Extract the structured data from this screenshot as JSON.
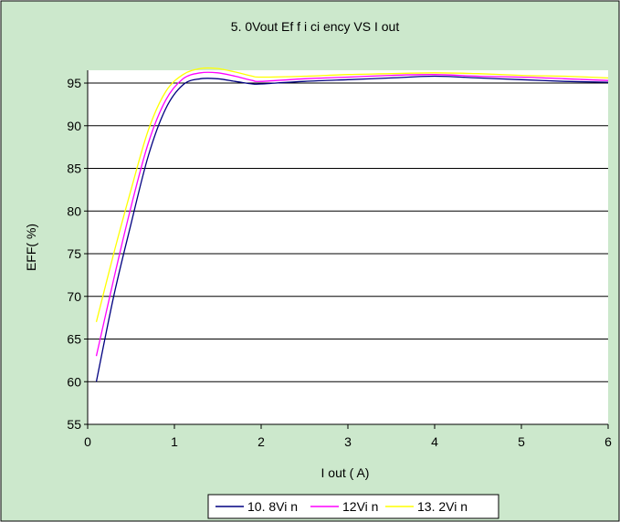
{
  "chart_data": {
    "type": "line",
    "title": "5. 0Vout  Ef f i ci ency VS I out",
    "xlabel": "I out ( A)",
    "ylabel": "EFF( %)",
    "xlim": [
      0,
      6
    ],
    "ylim": [
      55,
      96.5
    ],
    "x_ticks": [
      0,
      1,
      2,
      3,
      4,
      5,
      6
    ],
    "y_ticks": [
      55,
      60,
      65,
      70,
      75,
      80,
      85,
      90,
      95
    ],
    "grid": "horizontal",
    "legend_position": "bottom",
    "background": "#cce8cc",
    "plot_background": "#ffffff",
    "series": [
      {
        "name": "10. 8Vi n",
        "color": "#000080",
        "points": [
          [
            0.1,
            60.0
          ],
          [
            0.3,
            70.0
          ],
          [
            0.5,
            78.5
          ],
          [
            0.7,
            86.5
          ],
          [
            0.9,
            92.0
          ],
          [
            1.1,
            94.8
          ],
          [
            1.3,
            95.5
          ],
          [
            1.5,
            95.5
          ],
          [
            1.7,
            95.2
          ],
          [
            1.9,
            94.9
          ],
          [
            2.0,
            94.9
          ],
          [
            2.5,
            95.2
          ],
          [
            3.0,
            95.4
          ],
          [
            3.5,
            95.6
          ],
          [
            4.0,
            95.8
          ],
          [
            4.5,
            95.6
          ],
          [
            5.0,
            95.4
          ],
          [
            5.5,
            95.2
          ],
          [
            6.0,
            95.1
          ]
        ]
      },
      {
        "name": "12Vi n",
        "color": "#ff00ff",
        "points": [
          [
            0.1,
            63.0
          ],
          [
            0.3,
            72.0
          ],
          [
            0.5,
            80.5
          ],
          [
            0.7,
            88.0
          ],
          [
            0.9,
            93.0
          ],
          [
            1.1,
            95.5
          ],
          [
            1.3,
            96.2
          ],
          [
            1.5,
            96.2
          ],
          [
            1.7,
            95.8
          ],
          [
            1.9,
            95.3
          ],
          [
            2.0,
            95.2
          ],
          [
            2.5,
            95.5
          ],
          [
            3.0,
            95.7
          ],
          [
            3.5,
            95.9
          ],
          [
            4.0,
            96.0
          ],
          [
            4.5,
            95.8
          ],
          [
            5.0,
            95.7
          ],
          [
            5.5,
            95.5
          ],
          [
            6.0,
            95.3
          ]
        ]
      },
      {
        "name": "13. 2Vi n",
        "color": "#ffff00",
        "points": [
          [
            0.1,
            67.0
          ],
          [
            0.3,
            75.0
          ],
          [
            0.5,
            82.5
          ],
          [
            0.7,
            89.5
          ],
          [
            0.9,
            94.0
          ],
          [
            1.1,
            96.0
          ],
          [
            1.3,
            96.7
          ],
          [
            1.5,
            96.7
          ],
          [
            1.7,
            96.3
          ],
          [
            1.9,
            95.8
          ],
          [
            2.0,
            95.7
          ],
          [
            2.5,
            95.8
          ],
          [
            3.0,
            96.0
          ],
          [
            3.5,
            96.1
          ],
          [
            4.0,
            96.2
          ],
          [
            4.5,
            96.1
          ],
          [
            5.0,
            95.9
          ],
          [
            5.5,
            95.8
          ],
          [
            6.0,
            95.6
          ]
        ]
      }
    ]
  }
}
